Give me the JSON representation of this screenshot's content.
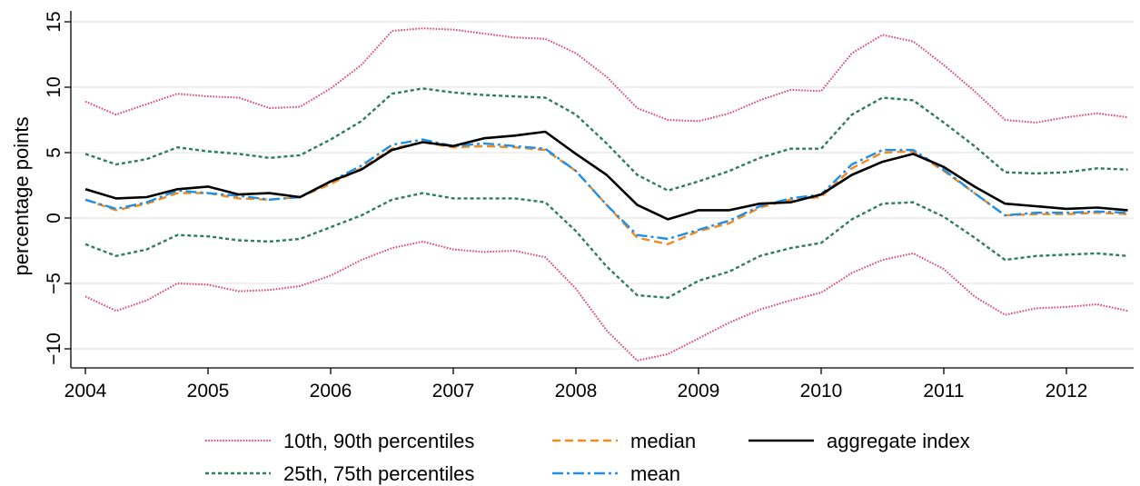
{
  "chart_data": {
    "type": "line",
    "xlabel": "",
    "ylabel": "percentage points",
    "xlim": [
      2004,
      2012.55
    ],
    "ylim": [
      -11.5,
      15.5
    ],
    "x_ticks": [
      2004,
      2005,
      2006,
      2007,
      2008,
      2009,
      2010,
      2011,
      2012
    ],
    "y_ticks": [
      -10,
      -5,
      0,
      5,
      10,
      15
    ],
    "y_tick_labels": [
      "−10",
      "−5",
      "0",
      "5",
      "10",
      "15"
    ],
    "grid": "horizontal",
    "legend_position": "bottom",
    "x": [
      2004.0,
      2004.25,
      2004.5,
      2004.75,
      2005.0,
      2005.25,
      2005.5,
      2005.75,
      2006.0,
      2006.25,
      2006.5,
      2006.75,
      2007.0,
      2007.25,
      2007.5,
      2007.75,
      2008.0,
      2008.25,
      2008.5,
      2008.75,
      2009.0,
      2009.25,
      2009.5,
      2009.75,
      2010.0,
      2010.25,
      2010.5,
      2010.75,
      2011.0,
      2011.25,
      2011.5,
      2011.75,
      2012.0,
      2012.25,
      2012.5
    ],
    "series": [
      {
        "name": "10th, 90th percentiles",
        "color": "#e0457b",
        "style": "dotted",
        "values": [
          -6.0,
          -7.1,
          -6.3,
          -5.0,
          -5.1,
          -5.6,
          -5.5,
          -5.2,
          -4.4,
          -3.2,
          -2.3,
          -1.8,
          -2.4,
          -2.6,
          -2.5,
          -3.0,
          -5.4,
          -8.6,
          -10.9,
          -10.4,
          -9.2,
          -8.0,
          -7.0,
          -6.3,
          -5.7,
          -4.2,
          -3.2,
          -2.7,
          -3.9,
          -6.0,
          -7.4,
          -6.9,
          -6.8,
          -6.6,
          -7.1
        ]
      },
      {
        "name": "",
        "color": "#e0457b",
        "style": "dotted",
        "values": [
          8.9,
          7.9,
          8.7,
          9.5,
          9.3,
          9.2,
          8.4,
          8.5,
          9.9,
          11.7,
          14.3,
          14.5,
          14.4,
          14.1,
          13.8,
          13.7,
          12.6,
          10.8,
          8.4,
          7.5,
          7.4,
          8.0,
          9.0,
          9.8,
          9.7,
          12.6,
          14.0,
          13.5,
          11.7,
          9.7,
          7.5,
          7.3,
          7.7,
          8.0,
          7.7
        ]
      },
      {
        "name": "25th, 75th percentiles",
        "color": "#2e7d5b",
        "style": "dashed-small",
        "values": [
          -2.0,
          -2.9,
          -2.4,
          -1.3,
          -1.4,
          -1.7,
          -1.8,
          -1.6,
          -0.7,
          0.2,
          1.4,
          1.9,
          1.5,
          1.5,
          1.5,
          1.2,
          -1.0,
          -3.7,
          -5.9,
          -6.1,
          -4.8,
          -4.1,
          -2.9,
          -2.3,
          -1.9,
          -0.1,
          1.1,
          1.2,
          0.1,
          -1.5,
          -3.2,
          -2.9,
          -2.8,
          -2.7,
          -2.9
        ]
      },
      {
        "name": "",
        "color": "#2e7d5b",
        "style": "dashed-small",
        "values": [
          4.9,
          4.1,
          4.5,
          5.4,
          5.1,
          4.9,
          4.6,
          4.8,
          6.0,
          7.4,
          9.5,
          9.9,
          9.6,
          9.4,
          9.3,
          9.2,
          7.9,
          5.7,
          3.3,
          2.1,
          2.8,
          3.6,
          4.6,
          5.3,
          5.3,
          7.9,
          9.2,
          9.0,
          7.3,
          5.5,
          3.5,
          3.4,
          3.5,
          3.8,
          3.7
        ]
      },
      {
        "name": "median",
        "color": "#f28a1c",
        "style": "dashed",
        "values": [
          1.4,
          0.6,
          1.1,
          1.9,
          1.9,
          1.5,
          1.4,
          1.6,
          2.6,
          3.8,
          5.3,
          5.8,
          5.4,
          5.5,
          5.4,
          5.2,
          3.6,
          1.0,
          -1.5,
          -2.0,
          -1.0,
          -0.4,
          0.8,
          1.4,
          1.6,
          3.8,
          5.0,
          5.1,
          3.6,
          1.9,
          0.2,
          0.3,
          0.3,
          0.4,
          0.3
        ]
      },
      {
        "name": "mean",
        "color": "#1f8fe8",
        "style": "dashdot",
        "values": [
          1.4,
          0.7,
          1.2,
          2.1,
          1.9,
          1.7,
          1.4,
          1.6,
          2.8,
          4.0,
          5.6,
          6.0,
          5.5,
          5.7,
          5.5,
          5.3,
          3.6,
          1.0,
          -1.3,
          -1.6,
          -0.9,
          -0.2,
          0.9,
          1.5,
          1.8,
          4.1,
          5.2,
          5.2,
          3.7,
          1.9,
          0.2,
          0.4,
          0.4,
          0.5,
          0.4
        ]
      },
      {
        "name": "aggregate index",
        "color": "#000000",
        "style": "solid",
        "values": [
          2.2,
          1.5,
          1.6,
          2.2,
          2.4,
          1.8,
          1.9,
          1.6,
          2.8,
          3.7,
          5.2,
          5.8,
          5.5,
          6.1,
          6.3,
          6.6,
          4.9,
          3.3,
          1.0,
          -0.1,
          0.6,
          0.6,
          1.1,
          1.2,
          1.8,
          3.3,
          4.3,
          4.9,
          3.9,
          2.4,
          1.1,
          0.9,
          0.7,
          0.8,
          0.6
        ]
      }
    ]
  }
}
